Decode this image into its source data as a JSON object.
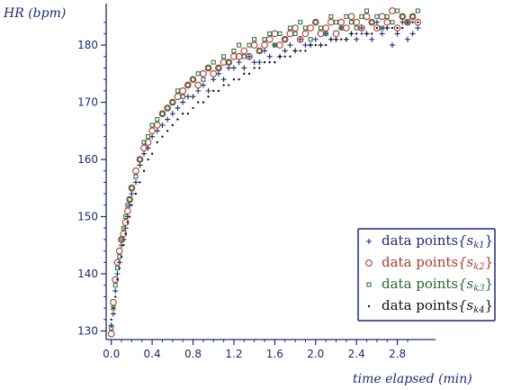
{
  "chart_data": {
    "type": "scatter",
    "ylabel": "HR (bpm)",
    "xlabel": "time  elapsed (min)",
    "xlim": [
      -0.05,
      3.05
    ],
    "ylim": [
      128.5,
      186
    ],
    "xticks": [
      0.0,
      0.4,
      0.8,
      1.2,
      1.6,
      2.0,
      2.4,
      2.8
    ],
    "xtick_labels": [
      "0.0",
      "0.4",
      "0.8",
      "1.2",
      "1.6",
      "2.0",
      "2.4",
      "2.8"
    ],
    "yticks": [
      130,
      140,
      150,
      160,
      170,
      180
    ],
    "ytick_labels": [
      "130",
      "140",
      "150",
      "160",
      "170",
      "180"
    ],
    "legend_placement": "lower-right",
    "axis_color": "#1c2a78",
    "series": [
      {
        "name": "data points {s_k1}",
        "legend_label": "data points",
        "legend_math": "{s",
        "legend_sub": "k1",
        "legend_close": "}",
        "marker": "plus",
        "color": "#1c2a78",
        "x": [
          0.0,
          0.02,
          0.04,
          0.06,
          0.08,
          0.1,
          0.12,
          0.14,
          0.16,
          0.18,
          0.2,
          0.24,
          0.28,
          0.32,
          0.36,
          0.4,
          0.45,
          0.5,
          0.55,
          0.6,
          0.65,
          0.7,
          0.75,
          0.8,
          0.85,
          0.9,
          0.95,
          1.0,
          1.05,
          1.1,
          1.15,
          1.2,
          1.25,
          1.3,
          1.35,
          1.4,
          1.45,
          1.5,
          1.55,
          1.6,
          1.65,
          1.7,
          1.75,
          1.8,
          1.85,
          1.9,
          1.95,
          2.0,
          2.05,
          2.1,
          2.15,
          2.2,
          2.25,
          2.3,
          2.35,
          2.4,
          2.45,
          2.5,
          2.55,
          2.6,
          2.65,
          2.7,
          2.75,
          2.8,
          2.85,
          2.9,
          2.95,
          3.0
        ],
        "y": [
          131,
          133,
          137,
          140,
          142,
          145,
          146,
          148,
          150,
          152,
          154,
          156,
          159,
          161,
          162,
          164,
          165,
          166,
          167,
          168,
          169,
          170,
          171,
          171,
          172,
          173,
          172,
          174,
          175,
          174,
          176,
          176,
          177,
          176,
          178,
          177,
          177,
          179,
          178,
          180,
          178,
          179,
          180,
          179,
          181,
          180,
          180,
          181,
          180,
          182,
          181,
          181,
          183,
          181,
          182,
          181,
          183,
          182,
          181,
          184,
          182,
          183,
          180,
          182,
          184,
          181,
          182,
          183
        ]
      },
      {
        "name": "data points {s_k2}",
        "legend_label": "data points",
        "legend_math": "{s",
        "legend_sub": "k2",
        "legend_close": "}",
        "marker": "circle",
        "color": "#b03a2e",
        "x": [
          0.0,
          0.02,
          0.04,
          0.06,
          0.08,
          0.1,
          0.12,
          0.14,
          0.16,
          0.18,
          0.2,
          0.24,
          0.28,
          0.32,
          0.36,
          0.4,
          0.45,
          0.5,
          0.55,
          0.6,
          0.65,
          0.7,
          0.75,
          0.8,
          0.85,
          0.9,
          0.95,
          1.0,
          1.05,
          1.1,
          1.15,
          1.2,
          1.25,
          1.3,
          1.35,
          1.4,
          1.45,
          1.5,
          1.55,
          1.6,
          1.65,
          1.7,
          1.75,
          1.8,
          1.85,
          1.9,
          1.95,
          2.0,
          2.05,
          2.1,
          2.15,
          2.2,
          2.25,
          2.3,
          2.35,
          2.4,
          2.45,
          2.5,
          2.55,
          2.6,
          2.65,
          2.7,
          2.75,
          2.8,
          2.85,
          2.9,
          2.95,
          3.0
        ],
        "y": [
          129.5,
          135,
          139,
          142,
          144,
          146,
          147,
          149,
          151,
          153,
          155,
          158,
          160,
          162,
          163,
          165,
          166,
          168,
          169,
          170,
          171,
          172,
          173,
          174,
          173,
          175,
          176,
          175,
          176,
          177,
          177,
          178,
          178,
          179,
          178,
          180,
          179,
          180,
          181,
          182,
          180,
          181,
          182,
          183,
          181,
          182,
          183,
          184,
          182,
          183,
          184,
          182,
          184,
          183,
          185,
          184,
          183,
          185,
          184,
          183,
          185,
          184,
          186,
          183,
          185,
          184,
          185,
          184
        ]
      },
      {
        "name": "data points {s_k3}",
        "legend_label": "data points",
        "legend_math": "{s",
        "legend_sub": "k3",
        "legend_close": "}",
        "marker": "square",
        "color": "#1f6b35",
        "x": [
          0.0,
          0.02,
          0.04,
          0.06,
          0.08,
          0.1,
          0.12,
          0.14,
          0.16,
          0.18,
          0.2,
          0.24,
          0.28,
          0.32,
          0.36,
          0.4,
          0.45,
          0.5,
          0.55,
          0.6,
          0.65,
          0.7,
          0.75,
          0.8,
          0.85,
          0.9,
          0.95,
          1.0,
          1.05,
          1.1,
          1.15,
          1.2,
          1.25,
          1.3,
          1.35,
          1.4,
          1.45,
          1.5,
          1.55,
          1.6,
          1.65,
          1.7,
          1.75,
          1.8,
          1.85,
          1.9,
          1.95,
          2.0,
          2.05,
          2.1,
          2.15,
          2.2,
          2.25,
          2.3,
          2.35,
          2.4,
          2.45,
          2.5,
          2.55,
          2.6,
          2.65,
          2.7,
          2.75,
          2.8,
          2.85,
          2.9,
          2.95,
          3.0
        ],
        "y": [
          130.5,
          134,
          138,
          141,
          143,
          146,
          148,
          150,
          152,
          153,
          155,
          157,
          160,
          163,
          164,
          166,
          167,
          168,
          169,
          170,
          172,
          171,
          173,
          174,
          175,
          174,
          176,
          177,
          176,
          178,
          177,
          179,
          180,
          178,
          180,
          181,
          179,
          181,
          182,
          180,
          182,
          181,
          183,
          182,
          184,
          183,
          181,
          184,
          183,
          182,
          185,
          184,
          183,
          185,
          184,
          183,
          185,
          186,
          184,
          185,
          183,
          185,
          184,
          186,
          185,
          184,
          185,
          186
        ]
      },
      {
        "name": "data points {s_k4}",
        "legend_label": "data points",
        "legend_math": "{s",
        "legend_sub": "k4",
        "legend_close": "}",
        "marker": "dot",
        "color": "#111111",
        "x": [
          0.0,
          0.02,
          0.04,
          0.06,
          0.08,
          0.1,
          0.12,
          0.14,
          0.16,
          0.18,
          0.2,
          0.24,
          0.28,
          0.32,
          0.36,
          0.4,
          0.45,
          0.5,
          0.55,
          0.6,
          0.65,
          0.7,
          0.75,
          0.8,
          0.85,
          0.9,
          0.95,
          1.0,
          1.05,
          1.1,
          1.15,
          1.2,
          1.25,
          1.3,
          1.35,
          1.4,
          1.45,
          1.5,
          1.55,
          1.6,
          1.65,
          1.7,
          1.75,
          1.8,
          1.85,
          1.9,
          1.95,
          2.0,
          2.05,
          2.1,
          2.15,
          2.2,
          2.25,
          2.3,
          2.35,
          2.4,
          2.45,
          2.5,
          2.55,
          2.6,
          2.65,
          2.7,
          2.75,
          2.8,
          2.85,
          2.9,
          2.95,
          3.0
        ],
        "y": [
          132,
          134,
          136,
          139,
          141,
          143,
          145,
          147,
          149,
          150,
          152,
          154,
          156,
          158,
          160,
          161,
          163,
          164,
          165,
          166,
          167,
          168,
          168,
          169,
          170,
          170,
          171,
          172,
          172,
          173,
          173,
          174,
          174,
          175,
          175,
          176,
          176,
          177,
          177,
          177,
          178,
          178,
          178,
          179,
          179,
          179,
          180,
          180,
          180,
          180,
          181,
          181,
          181,
          181,
          182,
          182,
          182,
          182,
          182,
          183,
          183,
          183,
          183,
          183,
          183,
          184,
          184,
          184
        ]
      }
    ]
  }
}
